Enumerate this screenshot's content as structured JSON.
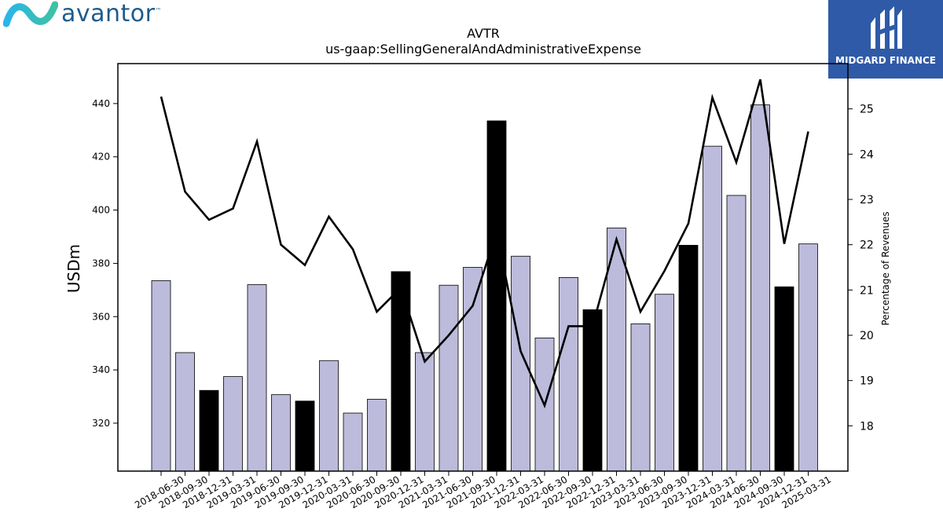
{
  "branding": {
    "left_logo_text": "avantor",
    "left_logo_tm": "™",
    "right_logo_text": "MIDGARD FINANCE"
  },
  "chart_data": {
    "type": "bar",
    "title": "AVTR",
    "subtitle": "us-gaap:SellingGeneralAndAdministrativeExpense",
    "xlabel": "",
    "ylabel": "USDm",
    "y2label": "Percentage of Revenues",
    "ylim": [
      302,
      455
    ],
    "y2lim": [
      17,
      26
    ],
    "yticks": [
      320,
      340,
      360,
      380,
      400,
      420,
      440
    ],
    "y2ticks": [
      18,
      19,
      20,
      21,
      22,
      23,
      24,
      25
    ],
    "bar_color": "#bcbbdb",
    "highlight_color": "#000000",
    "line_color": "#000000",
    "categories": [
      "2018-06-30",
      "2018-09-30",
      "2018-12-31",
      "2019-03-31",
      "2019-06-30",
      "2019-09-30",
      "2019-12-31",
      "2020-03-31",
      "2020-06-30",
      "2020-09-30",
      "2020-12-31",
      "2021-03-31",
      "2021-06-30",
      "2021-09-30",
      "2021-12-31",
      "2022-03-31",
      "2022-06-30",
      "2022-09-30",
      "2022-12-31",
      "2023-03-31",
      "2023-06-30",
      "2023-09-30",
      "2023-12-31",
      "2024-03-31",
      "2024-06-30",
      "2024-09-30",
      "2024-12-31",
      "2025-03-31"
    ],
    "series": [
      {
        "values": [
          373.5,
          346.5,
          332.3,
          337.5,
          372.0,
          330.7,
          328.3,
          343.5,
          323.8,
          329.0,
          376.9,
          346.5,
          371.8,
          378.5,
          433.5,
          382.7,
          352.0,
          374.7,
          362.6,
          393.3,
          357.3,
          368.4,
          386.8,
          424.0,
          405.5,
          439.5,
          371.2,
          387.3
        ],
        "highlight": [
          false,
          false,
          true,
          false,
          false,
          false,
          true,
          false,
          false,
          false,
          true,
          false,
          false,
          false,
          true,
          false,
          false,
          false,
          true,
          false,
          false,
          false,
          true,
          false,
          false,
          false,
          true,
          false
        ]
      },
      {
        "axis": "right",
        "values": [
          25.27,
          23.17,
          22.55,
          22.8,
          24.28,
          22.0,
          21.55,
          22.62,
          21.9,
          20.52,
          21.05,
          19.42,
          20.0,
          20.65,
          22.28,
          19.65,
          18.45,
          20.2,
          20.2,
          22.12,
          20.52,
          21.42,
          22.47,
          25.25,
          23.82,
          25.65,
          22.02,
          24.5
        ]
      }
    ]
  }
}
